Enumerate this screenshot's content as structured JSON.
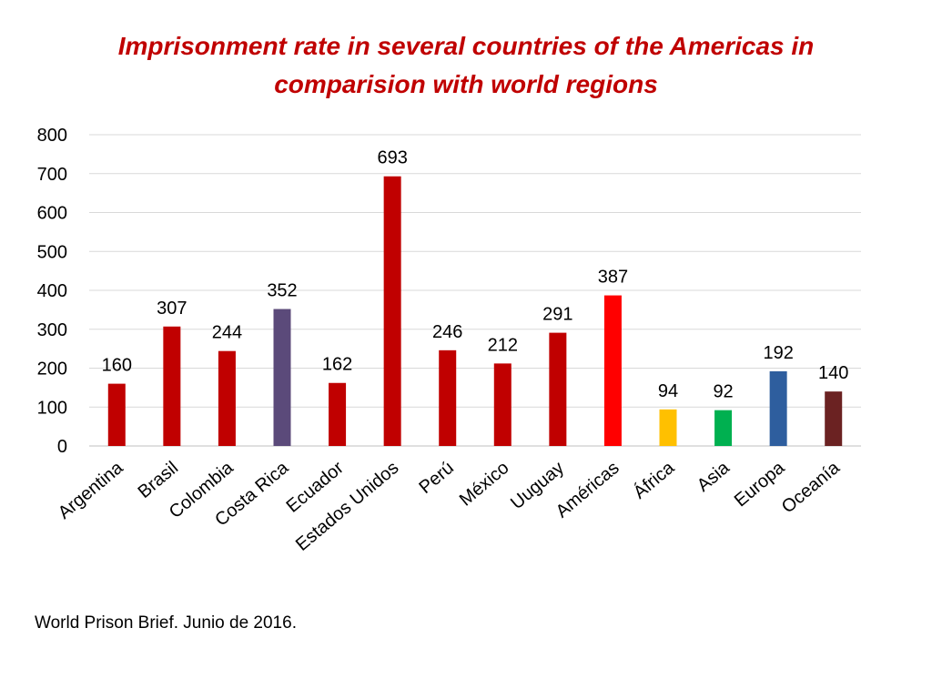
{
  "chart_data": {
    "type": "bar",
    "title_lines": [
      "Imprisonment rate in several countries of the Americas in",
      "comparision with world regions"
    ],
    "categories": [
      "Argentina",
      "Brasil",
      "Colombia",
      "Costa Rica",
      "Ecuador",
      "Estados Unidos",
      "Perú",
      "México",
      "Uuguay",
      "Américas",
      "África",
      "Asia",
      "Europa",
      "Oceanía"
    ],
    "values": [
      160,
      307,
      244,
      352,
      162,
      693,
      246,
      212,
      291,
      387,
      94,
      92,
      192,
      140
    ],
    "colors": [
      "#c00000",
      "#c00000",
      "#c00000",
      "#5b4a7a",
      "#c00000",
      "#c00000",
      "#c00000",
      "#c00000",
      "#c00000",
      "#ff0000",
      "#ffc000",
      "#00b050",
      "#2e5e9e",
      "#6b2222"
    ],
    "ylim": [
      0,
      800
    ],
    "yticks": [
      0,
      100,
      200,
      300,
      400,
      500,
      600,
      700,
      800
    ],
    "grid": true,
    "legend": "none"
  },
  "source": "World Prison Brief. Junio de 2016."
}
